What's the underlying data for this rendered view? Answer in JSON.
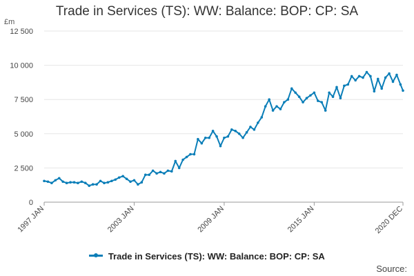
{
  "title": "Trade in Services (TS): WW: Balance: BOP: CP: SA",
  "unit": "£m",
  "source": "Source:",
  "colors": {
    "line": "#0a7eb8",
    "grid": "#e6e6e6",
    "axis": "#999999"
  },
  "chart_data": {
    "type": "line",
    "title": "Trade in Services (TS): WW: Balance: BOP: CP: SA",
    "xlabel": "",
    "ylabel": "£m",
    "ylim": [
      0,
      12500
    ],
    "yticks": [
      0,
      2500,
      5000,
      7500,
      10000,
      12500
    ],
    "ytick_labels": [
      "0",
      "2 500",
      "5 000",
      "7 500",
      "10 000",
      "12 500"
    ],
    "xlim": [
      "1997 JAN",
      "2020 DEC"
    ],
    "xticks": [
      "1997 JAN",
      "2003 JAN",
      "2009 JAN",
      "2015 JAN",
      "2020 DEC"
    ],
    "grid": true,
    "legend": "bottom",
    "series": [
      {
        "name": "Trade in Services (TS): WW: Balance: BOP: CP: SA",
        "color": "#0a7eb8",
        "points": [
          [
            "1997 JAN",
            1550
          ],
          [
            "1997 APR",
            1500
          ],
          [
            "1997 JUL",
            1400
          ],
          [
            "1997 OCT",
            1600
          ],
          [
            "1998 JAN",
            1750
          ],
          [
            "1998 APR",
            1500
          ],
          [
            "1998 JUL",
            1400
          ],
          [
            "1998 OCT",
            1450
          ],
          [
            "1999 JAN",
            1450
          ],
          [
            "1999 APR",
            1400
          ],
          [
            "1999 JUL",
            1500
          ],
          [
            "1999 OCT",
            1400
          ],
          [
            "2000 JAN",
            1200
          ],
          [
            "2000 APR",
            1300
          ],
          [
            "2000 JUL",
            1300
          ],
          [
            "2000 OCT",
            1550
          ],
          [
            "2001 JAN",
            1400
          ],
          [
            "2001 APR",
            1450
          ],
          [
            "2001 JUL",
            1550
          ],
          [
            "2001 OCT",
            1650
          ],
          [
            "2002 JAN",
            1800
          ],
          [
            "2002 APR",
            1900
          ],
          [
            "2002 JUL",
            1700
          ],
          [
            "2002 OCT",
            1500
          ],
          [
            "2003 JAN",
            1600
          ],
          [
            "2003 APR",
            1300
          ],
          [
            "2003 JUL",
            1450
          ],
          [
            "2003 OCT",
            2000
          ],
          [
            "2004 JAN",
            2000
          ],
          [
            "2004 APR",
            2300
          ],
          [
            "2004 JUL",
            2100
          ],
          [
            "2004 OCT",
            2200
          ],
          [
            "2005 JAN",
            2100
          ],
          [
            "2005 APR",
            2300
          ],
          [
            "2005 JUL",
            2250
          ],
          [
            "2005 OCT",
            3000
          ],
          [
            "2006 JAN",
            2500
          ],
          [
            "2006 APR",
            3100
          ],
          [
            "2006 JUL",
            3300
          ],
          [
            "2006 OCT",
            3500
          ],
          [
            "2007 JAN",
            3500
          ],
          [
            "2007 APR",
            4600
          ],
          [
            "2007 JUL",
            4300
          ],
          [
            "2007 OCT",
            4700
          ],
          [
            "2008 JAN",
            4700
          ],
          [
            "2008 APR",
            5200
          ],
          [
            "2008 JUL",
            4800
          ],
          [
            "2008 OCT",
            4100
          ],
          [
            "2009 JAN",
            4700
          ],
          [
            "2009 APR",
            4800
          ],
          [
            "2009 JUL",
            5300
          ],
          [
            "2009 OCT",
            5200
          ],
          [
            "2010 JAN",
            5000
          ],
          [
            "2010 APR",
            4700
          ],
          [
            "2010 JUL",
            5100
          ],
          [
            "2010 OCT",
            5500
          ],
          [
            "2011 JAN",
            5300
          ],
          [
            "2011 APR",
            5800
          ],
          [
            "2011 JUL",
            6200
          ],
          [
            "2011 OCT",
            7000
          ],
          [
            "2012 JAN",
            7500
          ],
          [
            "2012 APR",
            6700
          ],
          [
            "2012 JUL",
            7000
          ],
          [
            "2012 OCT",
            6800
          ],
          [
            "2013 JAN",
            7300
          ],
          [
            "2013 APR",
            7500
          ],
          [
            "2013 JUL",
            8300
          ],
          [
            "2013 OCT",
            8000
          ],
          [
            "2014 JAN",
            7700
          ],
          [
            "2014 APR",
            7300
          ],
          [
            "2014 JUL",
            7600
          ],
          [
            "2014 OCT",
            7800
          ],
          [
            "2015 JAN",
            8000
          ],
          [
            "2015 APR",
            7400
          ],
          [
            "2015 JUL",
            7300
          ],
          [
            "2015 OCT",
            6700
          ],
          [
            "2016 JAN",
            8000
          ],
          [
            "2016 APR",
            7700
          ],
          [
            "2016 JUL",
            8400
          ],
          [
            "2016 OCT",
            7600
          ],
          [
            "2017 JAN",
            8500
          ],
          [
            "2017 APR",
            8600
          ],
          [
            "2017 JUL",
            9200
          ],
          [
            "2017 OCT",
            8900
          ],
          [
            "2018 JAN",
            9200
          ],
          [
            "2018 APR",
            9100
          ],
          [
            "2018 JUL",
            9500
          ],
          [
            "2018 OCT",
            9200
          ],
          [
            "2019 JAN",
            8100
          ],
          [
            "2019 APR",
            9000
          ],
          [
            "2019 JUL",
            8300
          ],
          [
            "2019 OCT",
            9100
          ],
          [
            "2020 JAN",
            9400
          ],
          [
            "2020 APR",
            8800
          ],
          [
            "2020 JUL",
            9300
          ],
          [
            "2020 OCT",
            8600
          ],
          [
            "2020 DEC",
            8150
          ]
        ]
      }
    ]
  }
}
